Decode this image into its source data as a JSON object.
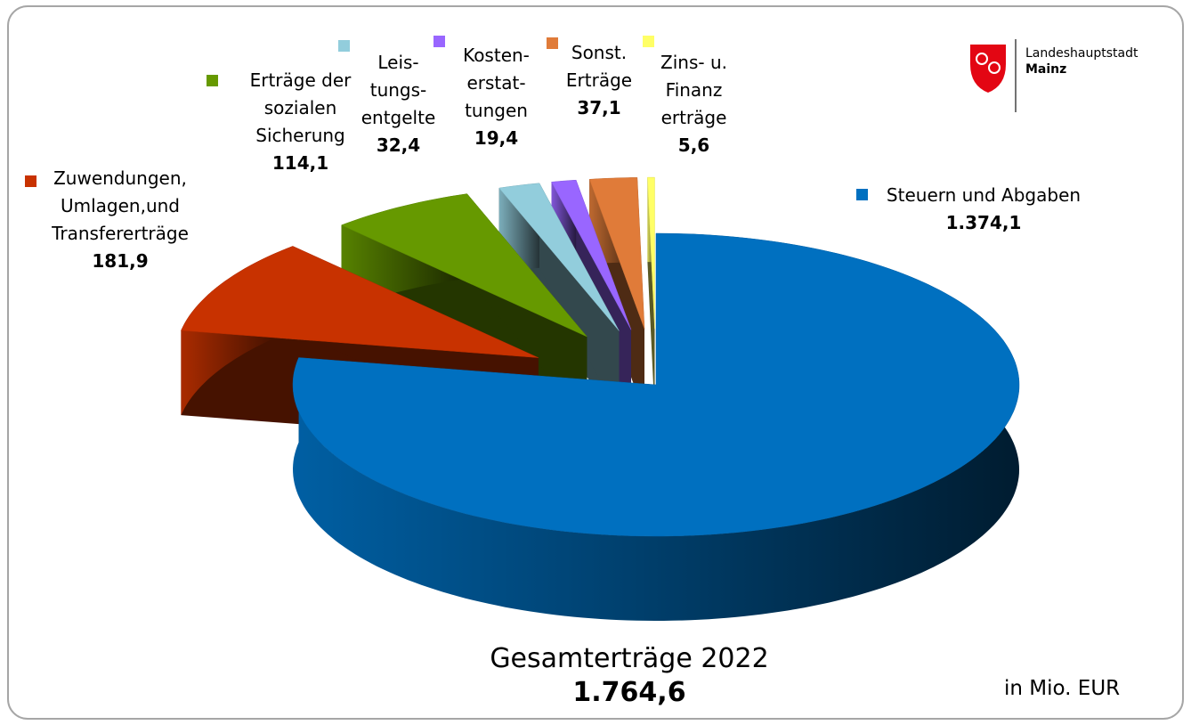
{
  "chart_data": {
    "type": "pie3d",
    "categories": [
      "Steuern und Abgaben",
      "Zuwendungen,\nUmlagen,und\nTransfererträge",
      "Erträge der\nsozialen\nSicherung",
      "Leis-\ntungs-\nentgelte",
      "Kosten-\nerstat-\ntungen",
      "Sonst.\nErträge",
      "Zins- u.\nFinanz\nerträge"
    ],
    "values": [
      1374.1,
      181.9,
      114.1,
      32.4,
      19.4,
      37.1,
      5.6
    ],
    "value_labels": [
      "1.374,1",
      "181,9",
      "114,1",
      "32,4",
      "19,4",
      "37,1",
      "5,6"
    ],
    "colors": [
      "#0070c0",
      "#c83200",
      "#669900",
      "#92cddc",
      "#9966ff",
      "#e07b39",
      "#ffff66"
    ],
    "total": {
      "title": "Gesamterträge 2022",
      "value_label": "1.764,6"
    },
    "unit_note": "in Mio. EUR"
  },
  "logo": {
    "line1": "Landeshauptstadt",
    "line2": "Mainz"
  }
}
